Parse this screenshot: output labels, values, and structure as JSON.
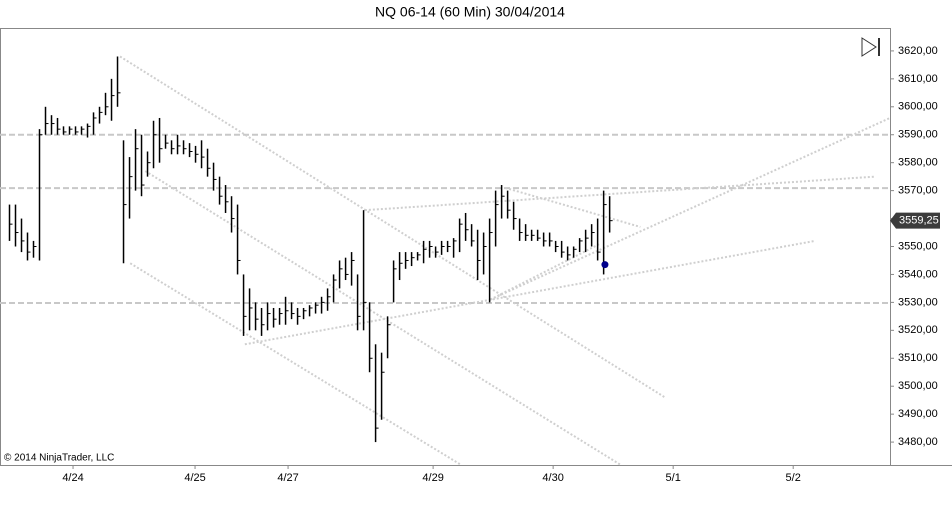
{
  "chart_data": {
    "type": "ohlc",
    "title": "NQ 06-14 (60 Min)  30/04/2014",
    "copyright": "© 2014 NinjaTrader, LLC",
    "bars": {
      "high": [
        3565,
        3565,
        3560,
        3555,
        3552,
        3592,
        3600,
        3597,
        3596,
        3593,
        3593,
        3593,
        3593,
        3594,
        3598,
        3600,
        3605,
        3610,
        3618,
        3588,
        3582,
        3592,
        3590,
        3584,
        3595,
        3596,
        3590,
        3588,
        3590,
        3588,
        3587,
        3586,
        3588,
        3585,
        3580,
        3575,
        3572,
        3568,
        3565,
        3540,
        3535,
        3530,
        3528,
        3530,
        3528,
        3528,
        3532,
        3530,
        3528,
        3528,
        3529,
        3530,
        3532,
        3535,
        3540,
        3545,
        3546,
        3548,
        3540,
        3563,
        3530,
        3515,
        3512,
        3525,
        3545,
        3548,
        3548,
        3548,
        3548,
        3552,
        3552,
        3550,
        3552,
        3552,
        3553,
        3560,
        3562,
        3558,
        3556,
        3555,
        3560,
        3570,
        3572,
        3570,
        3566,
        3560,
        3558,
        3556,
        3556,
        3555,
        3555,
        3552,
        3552,
        3550,
        3550,
        3553,
        3556,
        3558,
        3560,
        3570,
        3568
      ],
      "low": [
        3552,
        3550,
        3548,
        3545,
        3546,
        3545,
        3590,
        3590,
        3590,
        3590,
        3590,
        3590,
        3590,
        3589,
        3590,
        3594,
        3597,
        3595,
        3600,
        3544,
        3560,
        3570,
        3568,
        3575,
        3578,
        3580,
        3585,
        3583,
        3583,
        3583,
        3582,
        3580,
        3578,
        3575,
        3570,
        3565,
        3562,
        3555,
        3540,
        3518,
        3520,
        3520,
        3518,
        3520,
        3521,
        3522,
        3522,
        3524,
        3522,
        3524,
        3525,
        3526,
        3526,
        3527,
        3530,
        3535,
        3538,
        3536,
        3520,
        3520,
        3505,
        3480,
        3488,
        3510,
        3530,
        3538,
        3542,
        3543,
        3545,
        3544,
        3546,
        3546,
        3547,
        3548,
        3546,
        3548,
        3552,
        3550,
        3538,
        3540,
        3530,
        3550,
        3560,
        3560,
        3556,
        3552,
        3552,
        3552,
        3552,
        3550,
        3550,
        3548,
        3546,
        3545,
        3546,
        3548,
        3548,
        3550,
        3545,
        3540,
        3555
      ],
      "close": [
        3558,
        3555,
        3552,
        3548,
        3550,
        3590,
        3594,
        3594,
        3592,
        3591,
        3592,
        3591,
        3592,
        3593,
        3596,
        3598,
        3600,
        3604,
        3605,
        3565,
        3575,
        3585,
        3572,
        3580,
        3590,
        3585,
        3587,
        3585,
        3586,
        3585,
        3584,
        3583,
        3582,
        3578,
        3574,
        3568,
        3566,
        3560,
        3545,
        3525,
        3528,
        3524,
        3522,
        3526,
        3524,
        3526,
        3527,
        3526,
        3525,
        3527,
        3528,
        3529,
        3530,
        3532,
        3538,
        3542,
        3540,
        3545,
        3525,
        3530,
        3510,
        3485,
        3505,
        3522,
        3542,
        3544,
        3545,
        3546,
        3547,
        3549,
        3550,
        3548,
        3550,
        3550,
        3552,
        3558,
        3556,
        3552,
        3545,
        3550,
        3555,
        3565,
        3568,
        3563,
        3560,
        3555,
        3554,
        3554,
        3553,
        3552,
        3552,
        3550,
        3548,
        3547,
        3549,
        3552,
        3553,
        3555,
        3548,
        3565,
        3559.25
      ]
    },
    "color": "#000000",
    "xlim": [
      -1.5,
      146.8
    ],
    "xticks": [
      {
        "value": 10.67,
        "label": "4/24"
      },
      {
        "value": 31,
        "label": "4/25"
      },
      {
        "value": 46.5,
        "label": "4/27"
      },
      {
        "value": 70.67,
        "label": "4/29"
      },
      {
        "value": 90.67,
        "label": "4/30"
      },
      {
        "value": 110.67,
        "label": "5/1"
      },
      {
        "value": 130.67,
        "label": "5/2"
      }
    ],
    "ylim": [
      3471.8,
      3628.2
    ],
    "yticks": [
      {
        "value": 3480,
        "label": "3480,00"
      },
      {
        "value": 3490,
        "label": "3490,00"
      },
      {
        "value": 3500,
        "label": "3500,00"
      },
      {
        "value": 3510,
        "label": "3510,00"
      },
      {
        "value": 3520,
        "label": "3520,00"
      },
      {
        "value": 3530,
        "label": "3530,00"
      },
      {
        "value": 3540,
        "label": "3540,00"
      },
      {
        "value": 3550,
        "label": "3550,00"
      },
      {
        "value": 3560,
        "label": "3560,00"
      },
      {
        "value": 3570,
        "label": "3570,00"
      },
      {
        "value": 3580,
        "label": "3580,00"
      },
      {
        "value": 3590,
        "label": "3590,00"
      },
      {
        "value": 3600,
        "label": "3600,00"
      },
      {
        "value": 3610,
        "label": "3610,00"
      },
      {
        "value": 3620,
        "label": "3620,00"
      }
    ],
    "last_price": {
      "value": 3559.25,
      "label": "3559,25"
    },
    "h_lines": [
      3590,
      3570.9,
      3529.8
    ],
    "h_line_color": "#c8c8c8",
    "trend_lines": [
      {
        "x": [
          18.5,
          109.3
        ],
        "y": [
          3618,
          3496
        ]
      },
      {
        "x": [
          22.7,
          101.8
        ],
        "y": [
          3577,
          3472
        ]
      },
      {
        "x": [
          20.2,
          75.2
        ],
        "y": [
          3544,
          3472
        ]
      },
      {
        "x": [
          39.3,
          134.3
        ],
        "y": [
          3515,
          3552
        ]
      },
      {
        "x": [
          59.3,
          144.3
        ],
        "y": [
          3563,
          3575
        ]
      },
      {
        "x": [
          80.2,
          146.8
        ],
        "y": [
          3531,
          3596
        ]
      },
      {
        "x": [
          82.7,
          105.2
        ],
        "y": [
          3571,
          3557
        ]
      },
      {
        "x": [
          80.2,
          98.5
        ],
        "y": [
          3531,
          3551
        ]
      }
    ],
    "trend_color": "#cfcfcf",
    "marker": {
      "x": 99.3,
      "y": 3543.5,
      "color": "#00008b"
    }
  }
}
